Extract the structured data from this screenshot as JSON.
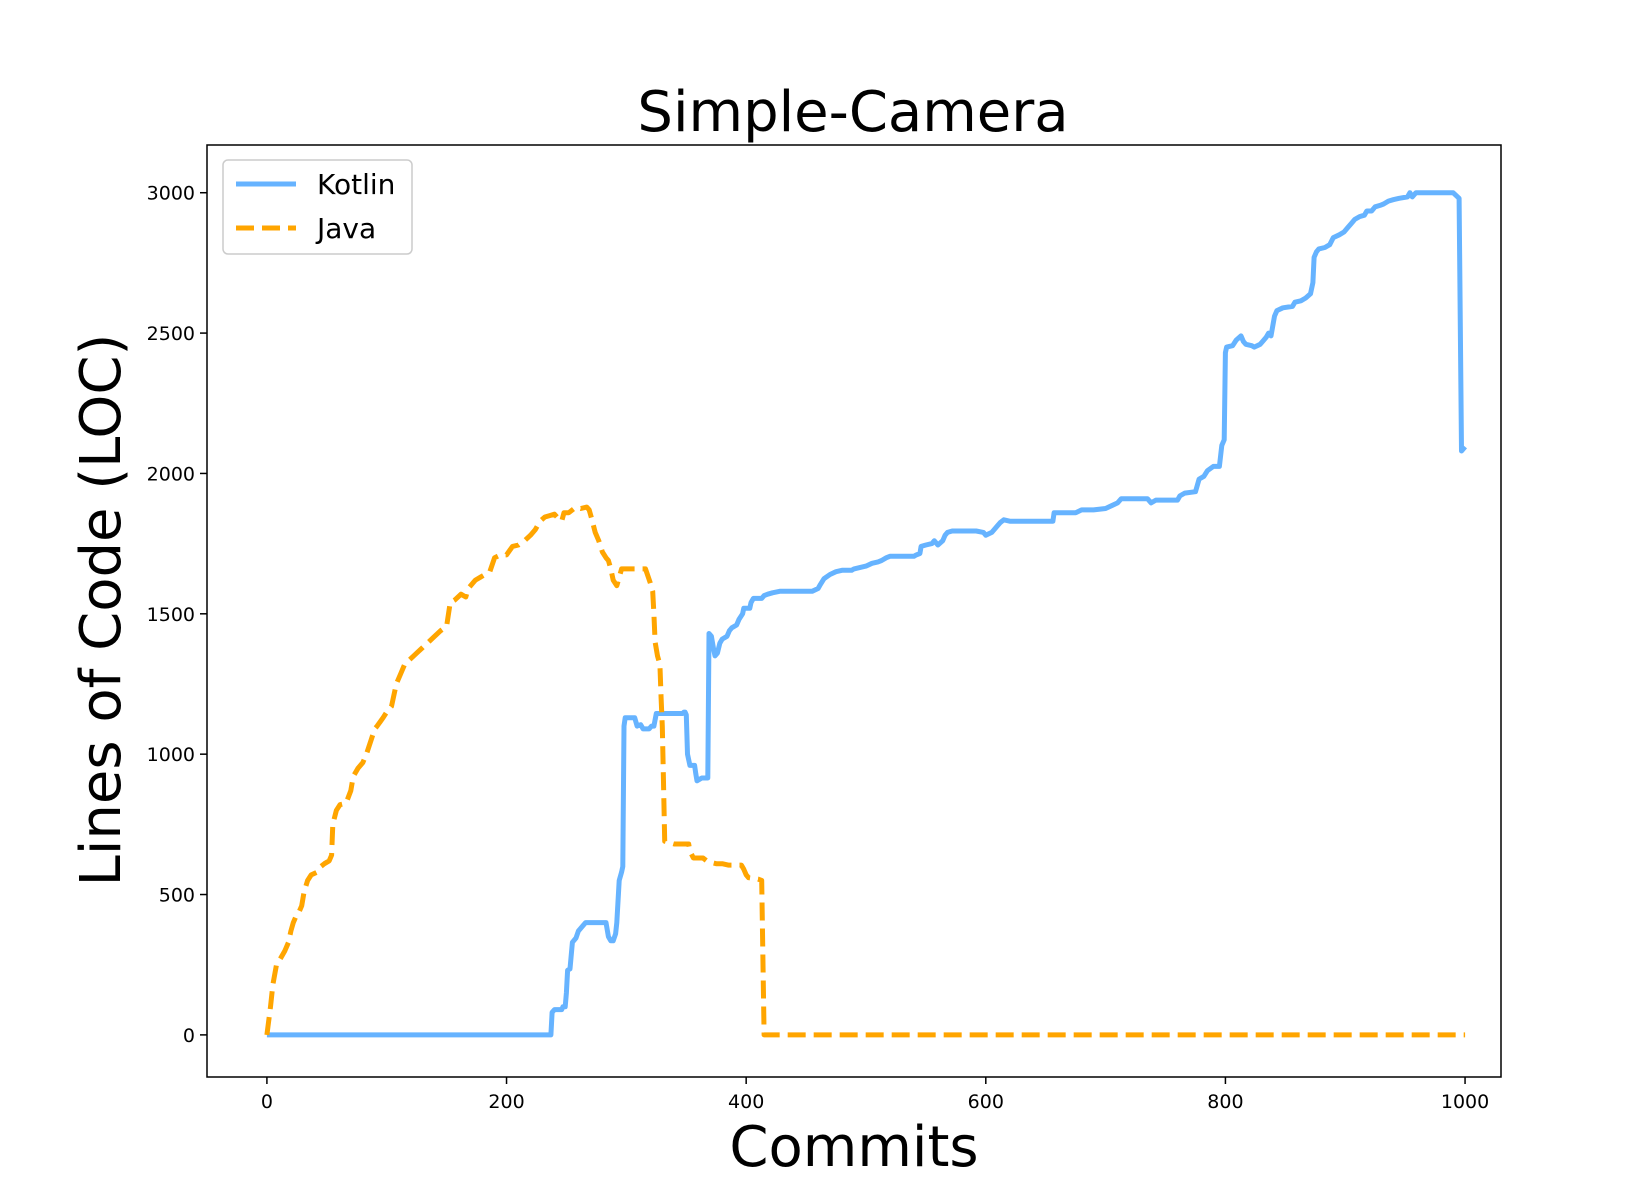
{
  "chart_data": {
    "type": "line",
    "title": "Simple-Camera",
    "xlabel": "Commits",
    "ylabel": "Lines of Code (LOC)",
    "xlim": [
      -50,
      1030
    ],
    "ylim": [
      -150,
      3170
    ],
    "xticks": [
      0,
      200,
      400,
      600,
      800,
      1000
    ],
    "yticks": [
      0,
      500,
      1000,
      1500,
      2000,
      2500,
      3000
    ],
    "xtick_labels": [
      "0",
      "200",
      "400",
      "600",
      "800",
      "1000"
    ],
    "ytick_labels": [
      "0",
      "500",
      "1000",
      "1500",
      "2000",
      "2500",
      "3000"
    ],
    "legend_position": "upper-left",
    "series": [
      {
        "name": "Kotlin",
        "color": "#66b3ff",
        "style": "solid",
        "points": [
          [
            0,
            0
          ],
          [
            237,
            0
          ],
          [
            238,
            80
          ],
          [
            240,
            90
          ],
          [
            246,
            90
          ],
          [
            247,
            100
          ],
          [
            249,
            100
          ],
          [
            250,
            150
          ],
          [
            251,
            230
          ],
          [
            253,
            235
          ],
          [
            255,
            330
          ],
          [
            258,
            345
          ],
          [
            260,
            370
          ],
          [
            264,
            390
          ],
          [
            266,
            400
          ],
          [
            283,
            400
          ],
          [
            285,
            350
          ],
          [
            287,
            335
          ],
          [
            289,
            335
          ],
          [
            291,
            360
          ],
          [
            292,
            400
          ],
          [
            294,
            550
          ],
          [
            296,
            580
          ],
          [
            297,
            600
          ],
          [
            298,
            1100
          ],
          [
            299,
            1130
          ],
          [
            307,
            1130
          ],
          [
            309,
            1100
          ],
          [
            312,
            1105
          ],
          [
            314,
            1090
          ],
          [
            319,
            1090
          ],
          [
            321,
            1100
          ],
          [
            323,
            1100
          ],
          [
            325,
            1145
          ],
          [
            347,
            1145
          ],
          [
            348,
            1150
          ],
          [
            349,
            1150
          ],
          [
            350,
            1140
          ],
          [
            351,
            1000
          ],
          [
            353,
            960
          ],
          [
            357,
            960
          ],
          [
            358,
            930
          ],
          [
            359,
            905
          ],
          [
            363,
            915
          ],
          [
            368,
            915
          ],
          [
            369,
            1430
          ],
          [
            371,
            1420
          ],
          [
            373,
            1370
          ],
          [
            374,
            1350
          ],
          [
            376,
            1360
          ],
          [
            378,
            1395
          ],
          [
            380,
            1410
          ],
          [
            384,
            1420
          ],
          [
            386,
            1440
          ],
          [
            388,
            1450
          ],
          [
            392,
            1460
          ],
          [
            394,
            1480
          ],
          [
            397,
            1500
          ],
          [
            398,
            1520
          ],
          [
            403,
            1520
          ],
          [
            404,
            1540
          ],
          [
            406,
            1555
          ],
          [
            413,
            1555
          ],
          [
            415,
            1565
          ],
          [
            418,
            1570
          ],
          [
            422,
            1575
          ],
          [
            428,
            1580
          ],
          [
            455,
            1580
          ],
          [
            460,
            1590
          ],
          [
            462,
            1605
          ],
          [
            465,
            1625
          ],
          [
            470,
            1640
          ],
          [
            475,
            1650
          ],
          [
            480,
            1655
          ],
          [
            488,
            1655
          ],
          [
            490,
            1660
          ],
          [
            500,
            1670
          ],
          [
            505,
            1680
          ],
          [
            510,
            1685
          ],
          [
            513,
            1690
          ],
          [
            517,
            1700
          ],
          [
            520,
            1705
          ],
          [
            540,
            1705
          ],
          [
            542,
            1710
          ],
          [
            545,
            1715
          ],
          [
            546,
            1740
          ],
          [
            550,
            1745
          ],
          [
            555,
            1750
          ],
          [
            557,
            1760
          ],
          [
            560,
            1745
          ],
          [
            564,
            1760
          ],
          [
            566,
            1780
          ],
          [
            568,
            1790
          ],
          [
            572,
            1795
          ],
          [
            587,
            1795
          ],
          [
            590,
            1795
          ],
          [
            592,
            1795
          ],
          [
            598,
            1790
          ],
          [
            600,
            1780
          ],
          [
            605,
            1790
          ],
          [
            610,
            1815
          ],
          [
            612,
            1825
          ],
          [
            615,
            1835
          ],
          [
            620,
            1830
          ],
          [
            625,
            1830
          ],
          [
            640,
            1830
          ],
          [
            656,
            1830
          ],
          [
            657,
            1860
          ],
          [
            663,
            1860
          ],
          [
            675,
            1860
          ],
          [
            680,
            1870
          ],
          [
            690,
            1870
          ],
          [
            700,
            1875
          ],
          [
            705,
            1885
          ],
          [
            710,
            1895
          ],
          [
            713,
            1910
          ],
          [
            720,
            1910
          ],
          [
            735,
            1910
          ],
          [
            738,
            1895
          ],
          [
            742,
            1905
          ],
          [
            745,
            1905
          ],
          [
            760,
            1905
          ],
          [
            762,
            1920
          ],
          [
            766,
            1930
          ],
          [
            775,
            1935
          ],
          [
            778,
            1980
          ],
          [
            782,
            1990
          ],
          [
            785,
            2010
          ],
          [
            790,
            2025
          ],
          [
            795,
            2025
          ],
          [
            797,
            2100
          ],
          [
            799,
            2120
          ],
          [
            800,
            2430
          ],
          [
            801,
            2450
          ],
          [
            806,
            2455
          ],
          [
            809,
            2475
          ],
          [
            813,
            2490
          ],
          [
            815,
            2470
          ],
          [
            817,
            2460
          ],
          [
            822,
            2455
          ],
          [
            824,
            2450
          ],
          [
            829,
            2460
          ],
          [
            831,
            2470
          ],
          [
            834,
            2485
          ],
          [
            836,
            2500
          ],
          [
            838,
            2490
          ],
          [
            841,
            2560
          ],
          [
            843,
            2580
          ],
          [
            848,
            2590
          ],
          [
            856,
            2595
          ],
          [
            858,
            2610
          ],
          [
            863,
            2615
          ],
          [
            867,
            2625
          ],
          [
            871,
            2640
          ],
          [
            873,
            2680
          ],
          [
            874,
            2770
          ],
          [
            876,
            2790
          ],
          [
            878,
            2800
          ],
          [
            883,
            2805
          ],
          [
            887,
            2815
          ],
          [
            890,
            2840
          ],
          [
            895,
            2850
          ],
          [
            899,
            2860
          ],
          [
            902,
            2875
          ],
          [
            905,
            2890
          ],
          [
            908,
            2905
          ],
          [
            912,
            2915
          ],
          [
            916,
            2920
          ],
          [
            918,
            2935
          ],
          [
            922,
            2935
          ],
          [
            925,
            2950
          ],
          [
            929,
            2955
          ],
          [
            932,
            2960
          ],
          [
            936,
            2970
          ],
          [
            940,
            2975
          ],
          [
            945,
            2980
          ],
          [
            952,
            2985
          ],
          [
            954,
            3000
          ],
          [
            956,
            2985
          ],
          [
            959,
            3000
          ],
          [
            985,
            3000
          ],
          [
            988,
            3000
          ],
          [
            990,
            3000
          ],
          [
            995,
            2980
          ],
          [
            997,
            2080
          ],
          [
            1000,
            2095
          ]
        ]
      },
      {
        "name": "Java",
        "color": "#ffa500",
        "style": "dashed",
        "points": [
          [
            0,
            0
          ],
          [
            3,
            100
          ],
          [
            5,
            180
          ],
          [
            8,
            250
          ],
          [
            11,
            270
          ],
          [
            15,
            300
          ],
          [
            18,
            330
          ],
          [
            20,
            370
          ],
          [
            22,
            400
          ],
          [
            24,
            420
          ],
          [
            26,
            430
          ],
          [
            29,
            460
          ],
          [
            31,
            510
          ],
          [
            34,
            550
          ],
          [
            37,
            570
          ],
          [
            42,
            580
          ],
          [
            45,
            600
          ],
          [
            48,
            610
          ],
          [
            52,
            620
          ],
          [
            54,
            640
          ],
          [
            55,
            750
          ],
          [
            58,
            800
          ],
          [
            61,
            820
          ],
          [
            66,
            825
          ],
          [
            70,
            870
          ],
          [
            72,
            920
          ],
          [
            76,
            950
          ],
          [
            80,
            970
          ],
          [
            83,
            1000
          ],
          [
            87,
            1050
          ],
          [
            90,
            1090
          ],
          [
            92,
            1100
          ],
          [
            97,
            1130
          ],
          [
            100,
            1150
          ],
          [
            104,
            1170
          ],
          [
            108,
            1250
          ],
          [
            112,
            1290
          ],
          [
            115,
            1320
          ],
          [
            120,
            1340
          ],
          [
            125,
            1360
          ],
          [
            130,
            1380
          ],
          [
            135,
            1400
          ],
          [
            140,
            1420
          ],
          [
            145,
            1440
          ],
          [
            150,
            1455
          ],
          [
            153,
            1540
          ],
          [
            157,
            1550
          ],
          [
            162,
            1570
          ],
          [
            166,
            1560
          ],
          [
            168,
            1590
          ],
          [
            172,
            1610
          ],
          [
            174,
            1620
          ],
          [
            178,
            1630
          ],
          [
            182,
            1640
          ],
          [
            186,
            1650
          ],
          [
            190,
            1700
          ],
          [
            195,
            1710
          ],
          [
            200,
            1710
          ],
          [
            205,
            1740
          ],
          [
            210,
            1745
          ],
          [
            215,
            1760
          ],
          [
            220,
            1780
          ],
          [
            224,
            1800
          ],
          [
            228,
            1830
          ],
          [
            232,
            1845
          ],
          [
            236,
            1850
          ],
          [
            240,
            1855
          ],
          [
            243,
            1840
          ],
          [
            246,
            1830
          ],
          [
            248,
            1860
          ],
          [
            252,
            1860
          ],
          [
            258,
            1880
          ],
          [
            262,
            1875
          ],
          [
            267,
            1880
          ],
          [
            269,
            1870
          ],
          [
            271,
            1840
          ],
          [
            274,
            1790
          ],
          [
            277,
            1760
          ],
          [
            280,
            1720
          ],
          [
            283,
            1700
          ],
          [
            285,
            1690
          ],
          [
            287,
            1660
          ],
          [
            289,
            1620
          ],
          [
            292,
            1600
          ],
          [
            296,
            1660
          ],
          [
            316,
            1660
          ],
          [
            320,
            1610
          ],
          [
            322,
            1580
          ],
          [
            323,
            1500
          ],
          [
            324,
            1400
          ],
          [
            326,
            1350
          ],
          [
            328,
            1320
          ],
          [
            329,
            1200
          ],
          [
            330,
            1100
          ],
          [
            331,
            900
          ],
          [
            332,
            690
          ],
          [
            340,
            680
          ],
          [
            352,
            680
          ],
          [
            353,
            655
          ],
          [
            356,
            630
          ],
          [
            364,
            630
          ],
          [
            367,
            620
          ],
          [
            370,
            615
          ],
          [
            375,
            610
          ],
          [
            380,
            610
          ],
          [
            385,
            605
          ],
          [
            396,
            605
          ],
          [
            398,
            590
          ],
          [
            400,
            570
          ],
          [
            402,
            560
          ],
          [
            410,
            555
          ],
          [
            413,
            550
          ],
          [
            415,
            0
          ],
          [
            1000,
            0
          ]
        ]
      }
    ]
  }
}
